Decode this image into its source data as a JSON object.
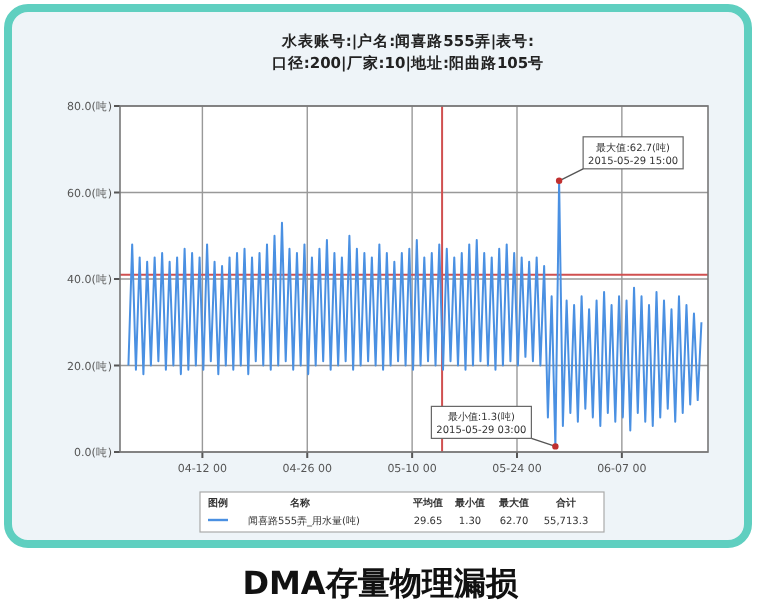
{
  "chart_data": {
    "type": "line",
    "title": "水表账号:|户名:闻喜路555弄|表号:",
    "subtitle": "口径:200|厂家:10|地址:阳曲路105号",
    "x": [
      "2015-04-02T03:00",
      "2015-04-02T15:00",
      "2015-04-03T03:00",
      "2015-04-03T15:00",
      "2015-04-04T03:00",
      "2015-04-04T15:00",
      "2015-04-05T03:00",
      "2015-04-05T15:00",
      "2015-04-06T03:00",
      "2015-04-06T15:00",
      "2015-04-07T03:00",
      "2015-04-07T15:00",
      "2015-04-08T03:00",
      "2015-04-08T15:00",
      "2015-04-09T03:00",
      "2015-04-09T15:00",
      "2015-04-10T03:00",
      "2015-04-10T15:00",
      "2015-04-11T03:00",
      "2015-04-11T15:00",
      "2015-04-12T03:00",
      "2015-04-12T15:00",
      "2015-04-13T03:00",
      "2015-04-13T15:00",
      "2015-04-14T03:00",
      "2015-04-14T15:00",
      "2015-04-15T03:00",
      "2015-04-15T15:00",
      "2015-04-16T03:00",
      "2015-04-16T15:00",
      "2015-04-17T03:00",
      "2015-04-17T15:00",
      "2015-04-18T03:00",
      "2015-04-18T15:00",
      "2015-04-19T03:00",
      "2015-04-19T15:00",
      "2015-04-20T03:00",
      "2015-04-20T15:00",
      "2015-04-21T03:00",
      "2015-04-21T15:00",
      "2015-04-22T03:00",
      "2015-04-22T15:00",
      "2015-04-23T03:00",
      "2015-04-23T15:00",
      "2015-04-24T03:00",
      "2015-04-24T15:00",
      "2015-04-25T03:00",
      "2015-04-25T15:00",
      "2015-04-26T03:00",
      "2015-04-26T15:00",
      "2015-04-27T03:00",
      "2015-04-27T15:00",
      "2015-04-28T03:00",
      "2015-04-28T15:00",
      "2015-04-29T03:00",
      "2015-04-29T15:00",
      "2015-04-30T03:00",
      "2015-04-30T15:00",
      "2015-05-01T03:00",
      "2015-05-01T15:00",
      "2015-05-02T03:00",
      "2015-05-02T15:00",
      "2015-05-03T03:00",
      "2015-05-03T15:00",
      "2015-05-04T03:00",
      "2015-05-04T15:00",
      "2015-05-05T03:00",
      "2015-05-05T15:00",
      "2015-05-06T03:00",
      "2015-05-06T15:00",
      "2015-05-07T03:00",
      "2015-05-07T15:00",
      "2015-05-08T03:00",
      "2015-05-08T15:00",
      "2015-05-09T03:00",
      "2015-05-09T15:00",
      "2015-05-10T03:00",
      "2015-05-10T15:00",
      "2015-05-11T03:00",
      "2015-05-11T15:00",
      "2015-05-12T03:00",
      "2015-05-12T15:00",
      "2015-05-13T03:00",
      "2015-05-13T15:00",
      "2015-05-14T03:00",
      "2015-05-14T15:00",
      "2015-05-15T03:00",
      "2015-05-15T15:00",
      "2015-05-16T03:00",
      "2015-05-16T15:00",
      "2015-05-17T03:00",
      "2015-05-17T15:00",
      "2015-05-18T03:00",
      "2015-05-18T15:00",
      "2015-05-19T03:00",
      "2015-05-19T15:00",
      "2015-05-20T03:00",
      "2015-05-20T15:00",
      "2015-05-21T03:00",
      "2015-05-21T15:00",
      "2015-05-22T03:00",
      "2015-05-22T15:00",
      "2015-05-23T03:00",
      "2015-05-23T15:00",
      "2015-05-24T03:00",
      "2015-05-24T15:00",
      "2015-05-25T03:00",
      "2015-05-25T15:00",
      "2015-05-26T03:00",
      "2015-05-26T15:00",
      "2015-05-27T03:00",
      "2015-05-27T15:00",
      "2015-05-28T03:00",
      "2015-05-28T15:00",
      "2015-05-29T03:00",
      "2015-05-29T15:00",
      "2015-05-30T03:00",
      "2015-05-30T15:00",
      "2015-05-31T03:00",
      "2015-05-31T15:00",
      "2015-06-01T03:00",
      "2015-06-01T15:00",
      "2015-06-02T03:00",
      "2015-06-02T15:00",
      "2015-06-03T03:00",
      "2015-06-03T15:00",
      "2015-06-04T03:00",
      "2015-06-04T15:00",
      "2015-06-05T03:00",
      "2015-06-05T15:00",
      "2015-06-06T03:00",
      "2015-06-06T15:00",
      "2015-06-07T03:00",
      "2015-06-07T15:00",
      "2015-06-08T03:00",
      "2015-06-08T15:00",
      "2015-06-09T03:00",
      "2015-06-09T15:00",
      "2015-06-10T03:00",
      "2015-06-10T15:00",
      "2015-06-11T03:00",
      "2015-06-11T15:00",
      "2015-06-12T03:00",
      "2015-06-12T15:00",
      "2015-06-13T03:00",
      "2015-06-13T15:00",
      "2015-06-14T03:00",
      "2015-06-14T15:00",
      "2015-06-15T03:00",
      "2015-06-15T15:00",
      "2015-06-16T03:00",
      "2015-06-16T15:00",
      "2015-06-17T03:00",
      "2015-06-17T15:00"
    ],
    "series": [
      {
        "name": "闻喜路555弄_用水量(吨)",
        "color": "#4a90e2",
        "values": [
          20,
          48,
          19,
          45,
          18,
          44,
          20,
          45,
          21,
          46,
          19,
          44,
          20,
          45,
          18,
          47,
          19,
          46,
          20,
          45,
          19,
          48,
          21,
          44,
          18,
          43,
          20,
          45,
          19,
          46,
          20,
          47,
          18,
          45,
          21,
          46,
          20,
          48,
          19,
          50,
          20,
          53,
          21,
          47,
          19,
          46,
          20,
          48,
          18,
          45,
          20,
          47,
          21,
          49,
          19,
          46,
          20,
          45,
          21,
          50,
          19,
          47,
          20,
          46,
          21,
          45,
          20,
          48,
          19,
          46,
          20,
          44,
          21,
          46,
          20,
          47,
          19,
          49,
          20,
          45,
          21,
          46,
          20,
          48,
          19,
          47,
          21,
          45,
          20,
          46,
          19,
          48,
          20,
          49,
          21,
          46,
          20,
          45,
          19,
          47,
          20,
          48,
          21,
          46,
          20,
          45,
          22,
          44,
          21,
          45,
          20,
          43,
          8,
          36,
          1.3,
          62.7,
          6,
          35,
          9,
          34,
          7,
          36,
          10,
          33,
          8,
          35,
          6,
          37,
          9,
          34,
          7,
          36,
          8,
          35,
          5,
          38,
          9,
          36,
          7,
          34,
          6,
          37,
          8,
          35,
          10,
          33,
          7,
          36,
          9,
          34,
          11,
          32,
          12,
          30
        ]
      }
    ],
    "xlim": [
      "2015-04-01T00:00",
      "2015-06-18T12:00"
    ],
    "xticks": [
      {
        "value": "2015-04-12",
        "label": "04-12 00"
      },
      {
        "value": "2015-04-26",
        "label": "04-26 00"
      },
      {
        "value": "2015-05-10",
        "label": "05-10 00"
      },
      {
        "value": "2015-05-24",
        "label": "05-24 00"
      },
      {
        "value": "2015-06-07",
        "label": "06-07 00"
      }
    ],
    "ylim": [
      0,
      80
    ],
    "yticks": [
      {
        "value": 0,
        "label": "0.0(吨)"
      },
      {
        "value": 20,
        "label": "20.0(吨)"
      },
      {
        "value": 40,
        "label": "40.0(吨)"
      },
      {
        "value": 60,
        "label": "60.0(吨)"
      },
      {
        "value": 80,
        "label": "80.0(吨)"
      }
    ],
    "grid": true,
    "legend": "bottom",
    "ref_lines": [
      {
        "axis": "y",
        "value": 41,
        "color": "#d05050"
      },
      {
        "axis": "x",
        "value": "2015-05-14",
        "color": "#d05050"
      }
    ],
    "annotations": [
      {
        "text": "最大值:62.7(吨)\n2015-05-29 15:00",
        "x": "2015-05-29T15:00",
        "y": 62.7
      },
      {
        "text": "最小值:1.3(吨)\n2015-05-29 03:00",
        "x": "2015-05-29T03:00",
        "y": 1.3
      },
      "图例",
      "名称",
      "平均值",
      "最小值",
      "最大值",
      "合计",
      "29.65",
      "1.30",
      "62.70",
      "55,713.3",
      "DMA存量物理漏损"
    ]
  }
}
